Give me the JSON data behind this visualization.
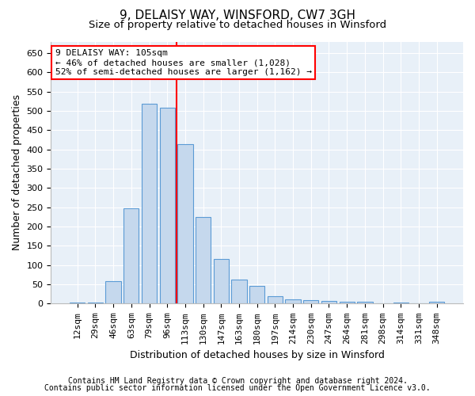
{
  "title": "9, DELAISY WAY, WINSFORD, CW7 3GH",
  "subtitle": "Size of property relative to detached houses in Winsford",
  "xlabel": "Distribution of detached houses by size in Winsford",
  "ylabel": "Number of detached properties",
  "footnote1": "Contains HM Land Registry data © Crown copyright and database right 2024.",
  "footnote2": "Contains public sector information licensed under the Open Government Licence v3.0.",
  "categories": [
    "12sqm",
    "29sqm",
    "46sqm",
    "63sqm",
    "79sqm",
    "96sqm",
    "113sqm",
    "130sqm",
    "147sqm",
    "163sqm",
    "180sqm",
    "197sqm",
    "214sqm",
    "230sqm",
    "247sqm",
    "264sqm",
    "281sqm",
    "298sqm",
    "314sqm",
    "331sqm",
    "348sqm"
  ],
  "values": [
    3,
    2,
    58,
    247,
    519,
    509,
    414,
    225,
    115,
    63,
    46,
    20,
    12,
    9,
    7,
    5,
    5,
    1,
    2,
    1,
    6
  ],
  "bar_color": "#c5d8ed",
  "bar_edge_color": "#5b9bd5",
  "vline_color": "red",
  "annotation_line1": "9 DELAISY WAY: 105sqm",
  "annotation_line2": "← 46% of detached houses are smaller (1,028)",
  "annotation_line3": "52% of semi-detached houses are larger (1,162) →",
  "annotation_box_color": "white",
  "annotation_box_edge": "red",
  "ylim": [
    0,
    680
  ],
  "yticks": [
    0,
    50,
    100,
    150,
    200,
    250,
    300,
    350,
    400,
    450,
    500,
    550,
    600,
    650
  ],
  "bg_color": "#e8f0f8",
  "title_fontsize": 11,
  "subtitle_fontsize": 9.5,
  "axis_label_fontsize": 9,
  "tick_fontsize": 8,
  "annotation_fontsize": 8,
  "footnote_fontsize": 7
}
